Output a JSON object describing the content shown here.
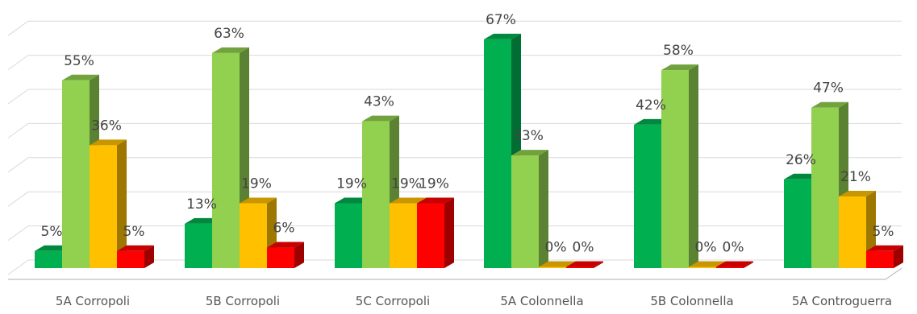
{
  "chart_data": {
    "type": "bar",
    "style": "3d-clustered-column",
    "categories": [
      "5A Corropoli",
      "5B Corropoli",
      "5C Corropoli",
      "5A Colonnella",
      "5B  Colonnella",
      "5A Controguerra"
    ],
    "series": [
      {
        "values": [
          5,
          13,
          19,
          67,
          42,
          26
        ],
        "color": "#00B050"
      },
      {
        "values": [
          55,
          63,
          43,
          33,
          58,
          47
        ],
        "color": "#92D050"
      },
      {
        "values": [
          36,
          19,
          19,
          0,
          0,
          21
        ],
        "color": "#FFC000"
      },
      {
        "values": [
          5,
          6,
          19,
          0,
          0,
          5
        ],
        "color": "#FF0000"
      }
    ],
    "data_labels": [
      [
        "5%",
        "13%",
        "19%",
        "67%",
        "42%",
        "26%"
      ],
      [
        "55%",
        "63%",
        "43%",
        "33%",
        "58%",
        "47%"
      ],
      [
        "36%",
        "19%",
        "19%",
        "0%",
        "0%",
        "21%"
      ],
      [
        "5%",
        "6%",
        "19%",
        "0%",
        "0%",
        "5%"
      ]
    ],
    "ylim": [
      0,
      70
    ],
    "grid": true,
    "legend": false,
    "title": "",
    "xlabel": "",
    "ylabel": ""
  }
}
